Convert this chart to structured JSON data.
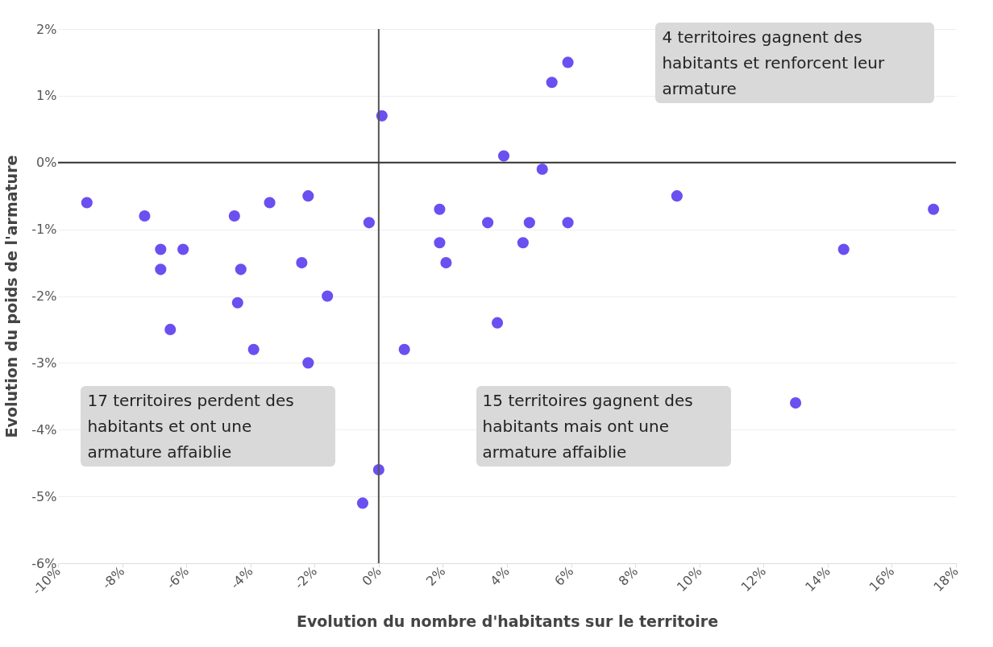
{
  "chart_data": {
    "type": "scatter",
    "xlabel": "Evolution du nombre d'habitants sur le territoire",
    "ylabel": "Evolution du poids de l'armature",
    "x": [
      -9.1,
      -7.3,
      -6.8,
      -6.1,
      -6.8,
      -6.5,
      -4.5,
      -3.4,
      -4.3,
      -4.4,
      -3.9,
      -2.2,
      -2.4,
      -1.6,
      -2.2,
      -0.3,
      -0.5,
      0.0,
      0.1,
      0.8,
      1.9,
      1.9,
      2.1,
      3.4,
      3.9,
      3.7,
      4.7,
      4.5,
      5.1,
      5.4,
      5.9,
      5.9,
      9.3,
      13.0,
      14.5,
      17.3
    ],
    "series": [
      {
        "color": "#6b4ff0",
        "values": [
          -0.6,
          -0.8,
          -1.3,
          -1.3,
          -1.6,
          -2.5,
          -0.8,
          -0.6,
          -1.6,
          -2.1,
          -2.8,
          -0.5,
          -1.5,
          -2.0,
          -3.0,
          -0.9,
          -5.1,
          -4.6,
          0.7,
          -2.8,
          -0.7,
          -1.2,
          -1.5,
          -0.9,
          0.1,
          -2.4,
          -0.9,
          -1.2,
          -0.1,
          1.2,
          1.5,
          -0.9,
          -0.5,
          -3.6,
          -1.3,
          -0.7
        ]
      }
    ],
    "xlim": [
      -10,
      18
    ],
    "xticks": [
      {
        "value": -10,
        "label": "-10%"
      },
      {
        "value": -8,
        "label": "-8%"
      },
      {
        "value": -6,
        "label": "-6%"
      },
      {
        "value": -4,
        "label": "-4%"
      },
      {
        "value": -2,
        "label": "-2%"
      },
      {
        "value": 0,
        "label": "0%"
      },
      {
        "value": 2,
        "label": "2%"
      },
      {
        "value": 4,
        "label": "4%"
      },
      {
        "value": 6,
        "label": "6%"
      },
      {
        "value": 8,
        "label": "8%"
      },
      {
        "value": 10,
        "label": "10%"
      },
      {
        "value": 12,
        "label": "12%"
      },
      {
        "value": 14,
        "label": "14%"
      },
      {
        "value": 16,
        "label": "16%"
      },
      {
        "value": 18,
        "label": "18%"
      }
    ],
    "ylim": [
      -6,
      2
    ],
    "yticks": [
      {
        "value": -6,
        "label": "-6%"
      },
      {
        "value": -5,
        "label": "-5%"
      },
      {
        "value": -4,
        "label": "-4%"
      },
      {
        "value": -3,
        "label": "-3%"
      },
      {
        "value": -2,
        "label": "-2%"
      },
      {
        "value": -1,
        "label": "-1%"
      },
      {
        "value": 0,
        "label": "0%"
      },
      {
        "value": 1,
        "label": "1%"
      },
      {
        "value": 2,
        "label": "2%"
      }
    ],
    "grid": "y",
    "marker": "circle",
    "ref_lines": [
      {
        "axis": "x",
        "value": 0,
        "color": "#555555"
      },
      {
        "axis": "y",
        "value": 0,
        "color": "#333333"
      }
    ],
    "annotations": [
      "4 territoires gagnent des habitants et renforcent leur armature",
      "17 territoires perdent des habitants et ont une armature affaiblie",
      "15 territoires gagnent des habitants mais ont une armature affaiblie"
    ]
  }
}
